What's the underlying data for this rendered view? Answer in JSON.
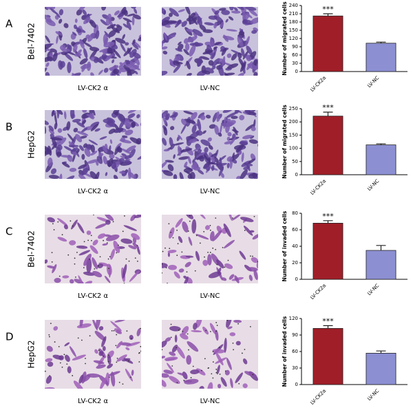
{
  "panels": [
    {
      "letter": "A",
      "cell_line": "Bel-7402",
      "captions": [
        "LV-CK2 α",
        "LV-NC"
      ]
    },
    {
      "letter": "B",
      "cell_line": "HepG2",
      "captions": [
        "LV-CK2 α",
        "LV-NC"
      ]
    },
    {
      "letter": "C",
      "cell_line": "Bel-7402",
      "captions": [
        "LV-CK2 α",
        "LV-NC"
      ]
    },
    {
      "letter": "D",
      "cell_line": "HepG2",
      "captions": [
        "LV-CK2 α",
        "LV-NC"
      ]
    }
  ],
  "chart_data": [
    {
      "type": "bar",
      "y_label": "Number of migrated cells",
      "categories": [
        "LV-CK2α",
        "LV-NC"
      ],
      "values": [
        202,
        103
      ],
      "errors": [
        8,
        4
      ],
      "colors": [
        "#a01e28",
        "#8c8fd2"
      ],
      "annotation": "***",
      "ylim": [
        0,
        240
      ],
      "yticks": [
        0,
        30,
        60,
        90,
        120,
        150,
        180,
        210,
        240
      ]
    },
    {
      "type": "bar",
      "y_label": "Number of migrated cells",
      "categories": [
        "LV-CK2α",
        "LV-NC"
      ],
      "values": [
        222,
        113
      ],
      "errors": [
        15,
        4
      ],
      "colors": [
        "#a01e28",
        "#8c8fd2"
      ],
      "annotation": "***",
      "ylim": [
        0,
        250
      ],
      "yticks": [
        0,
        50,
        100,
        150,
        200,
        250
      ]
    },
    {
      "type": "bar",
      "y_label": "Number of invaded cells",
      "categories": [
        "LV-CK2α",
        "LV-NC"
      ],
      "values": [
        68,
        35
      ],
      "errors": [
        3,
        6
      ],
      "colors": [
        "#a01e28",
        "#8c8fd2"
      ],
      "annotation": "***",
      "ylim": [
        0,
        80
      ],
      "yticks": [
        0,
        20,
        40,
        60,
        80
      ]
    },
    {
      "type": "bar",
      "y_label": "Number of invaded cells",
      "categories": [
        "LV-CK2α",
        "LV-NC"
      ],
      "values": [
        102,
        57
      ],
      "errors": [
        5,
        4
      ],
      "colors": [
        "#a01e28",
        "#8c8fd2"
      ],
      "annotation": "***",
      "ylim": [
        0,
        120
      ],
      "yticks": [
        0,
        30,
        60,
        90,
        120
      ]
    }
  ]
}
